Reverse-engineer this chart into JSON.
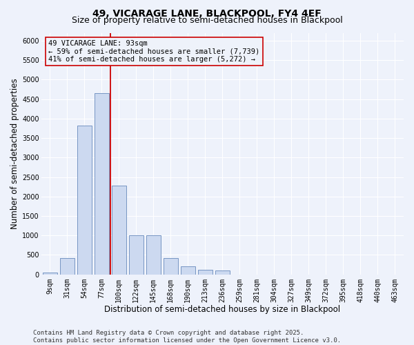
{
  "title_line1": "49, VICARAGE LANE, BLACKPOOL, FY4 4EF",
  "title_line2": "Size of property relative to semi-detached houses in Blackpool",
  "xlabel": "Distribution of semi-detached houses by size in Blackpool",
  "ylabel": "Number of semi-detached properties",
  "categories": [
    "9sqm",
    "31sqm",
    "54sqm",
    "77sqm",
    "100sqm",
    "122sqm",
    "145sqm",
    "168sqm",
    "190sqm",
    "213sqm",
    "236sqm",
    "259sqm",
    "281sqm",
    "304sqm",
    "327sqm",
    "349sqm",
    "372sqm",
    "395sqm",
    "418sqm",
    "440sqm",
    "463sqm"
  ],
  "values": [
    50,
    420,
    3820,
    4650,
    2280,
    1000,
    1000,
    420,
    200,
    120,
    110,
    0,
    0,
    0,
    0,
    0,
    0,
    0,
    0,
    0,
    0
  ],
  "bar_color": "#ccd9f0",
  "bar_edge_color": "#6688bb",
  "vline_color": "#cc0000",
  "vline_x_index": 3.5,
  "annotation_title": "49 VICARAGE LANE: 93sqm",
  "annotation_line1": "← 59% of semi-detached houses are smaller (7,739)",
  "annotation_line2": "41% of semi-detached houses are larger (5,272) →",
  "annotation_box_color": "#cc0000",
  "annotation_bg": "#eef2fa",
  "ylim": [
    0,
    6200
  ],
  "yticks": [
    0,
    500,
    1000,
    1500,
    2000,
    2500,
    3000,
    3500,
    4000,
    4500,
    5000,
    5500,
    6000
  ],
  "footnote1": "Contains HM Land Registry data © Crown copyright and database right 2025.",
  "footnote2": "Contains public sector information licensed under the Open Government Licence v3.0.",
  "bg_color": "#eef2fb",
  "grid_color": "#ffffff",
  "title_fontsize": 10,
  "subtitle_fontsize": 9,
  "axis_label_fontsize": 8.5,
  "tick_fontsize": 7,
  "annot_fontsize": 7.5,
  "footnote_fontsize": 6.5
}
